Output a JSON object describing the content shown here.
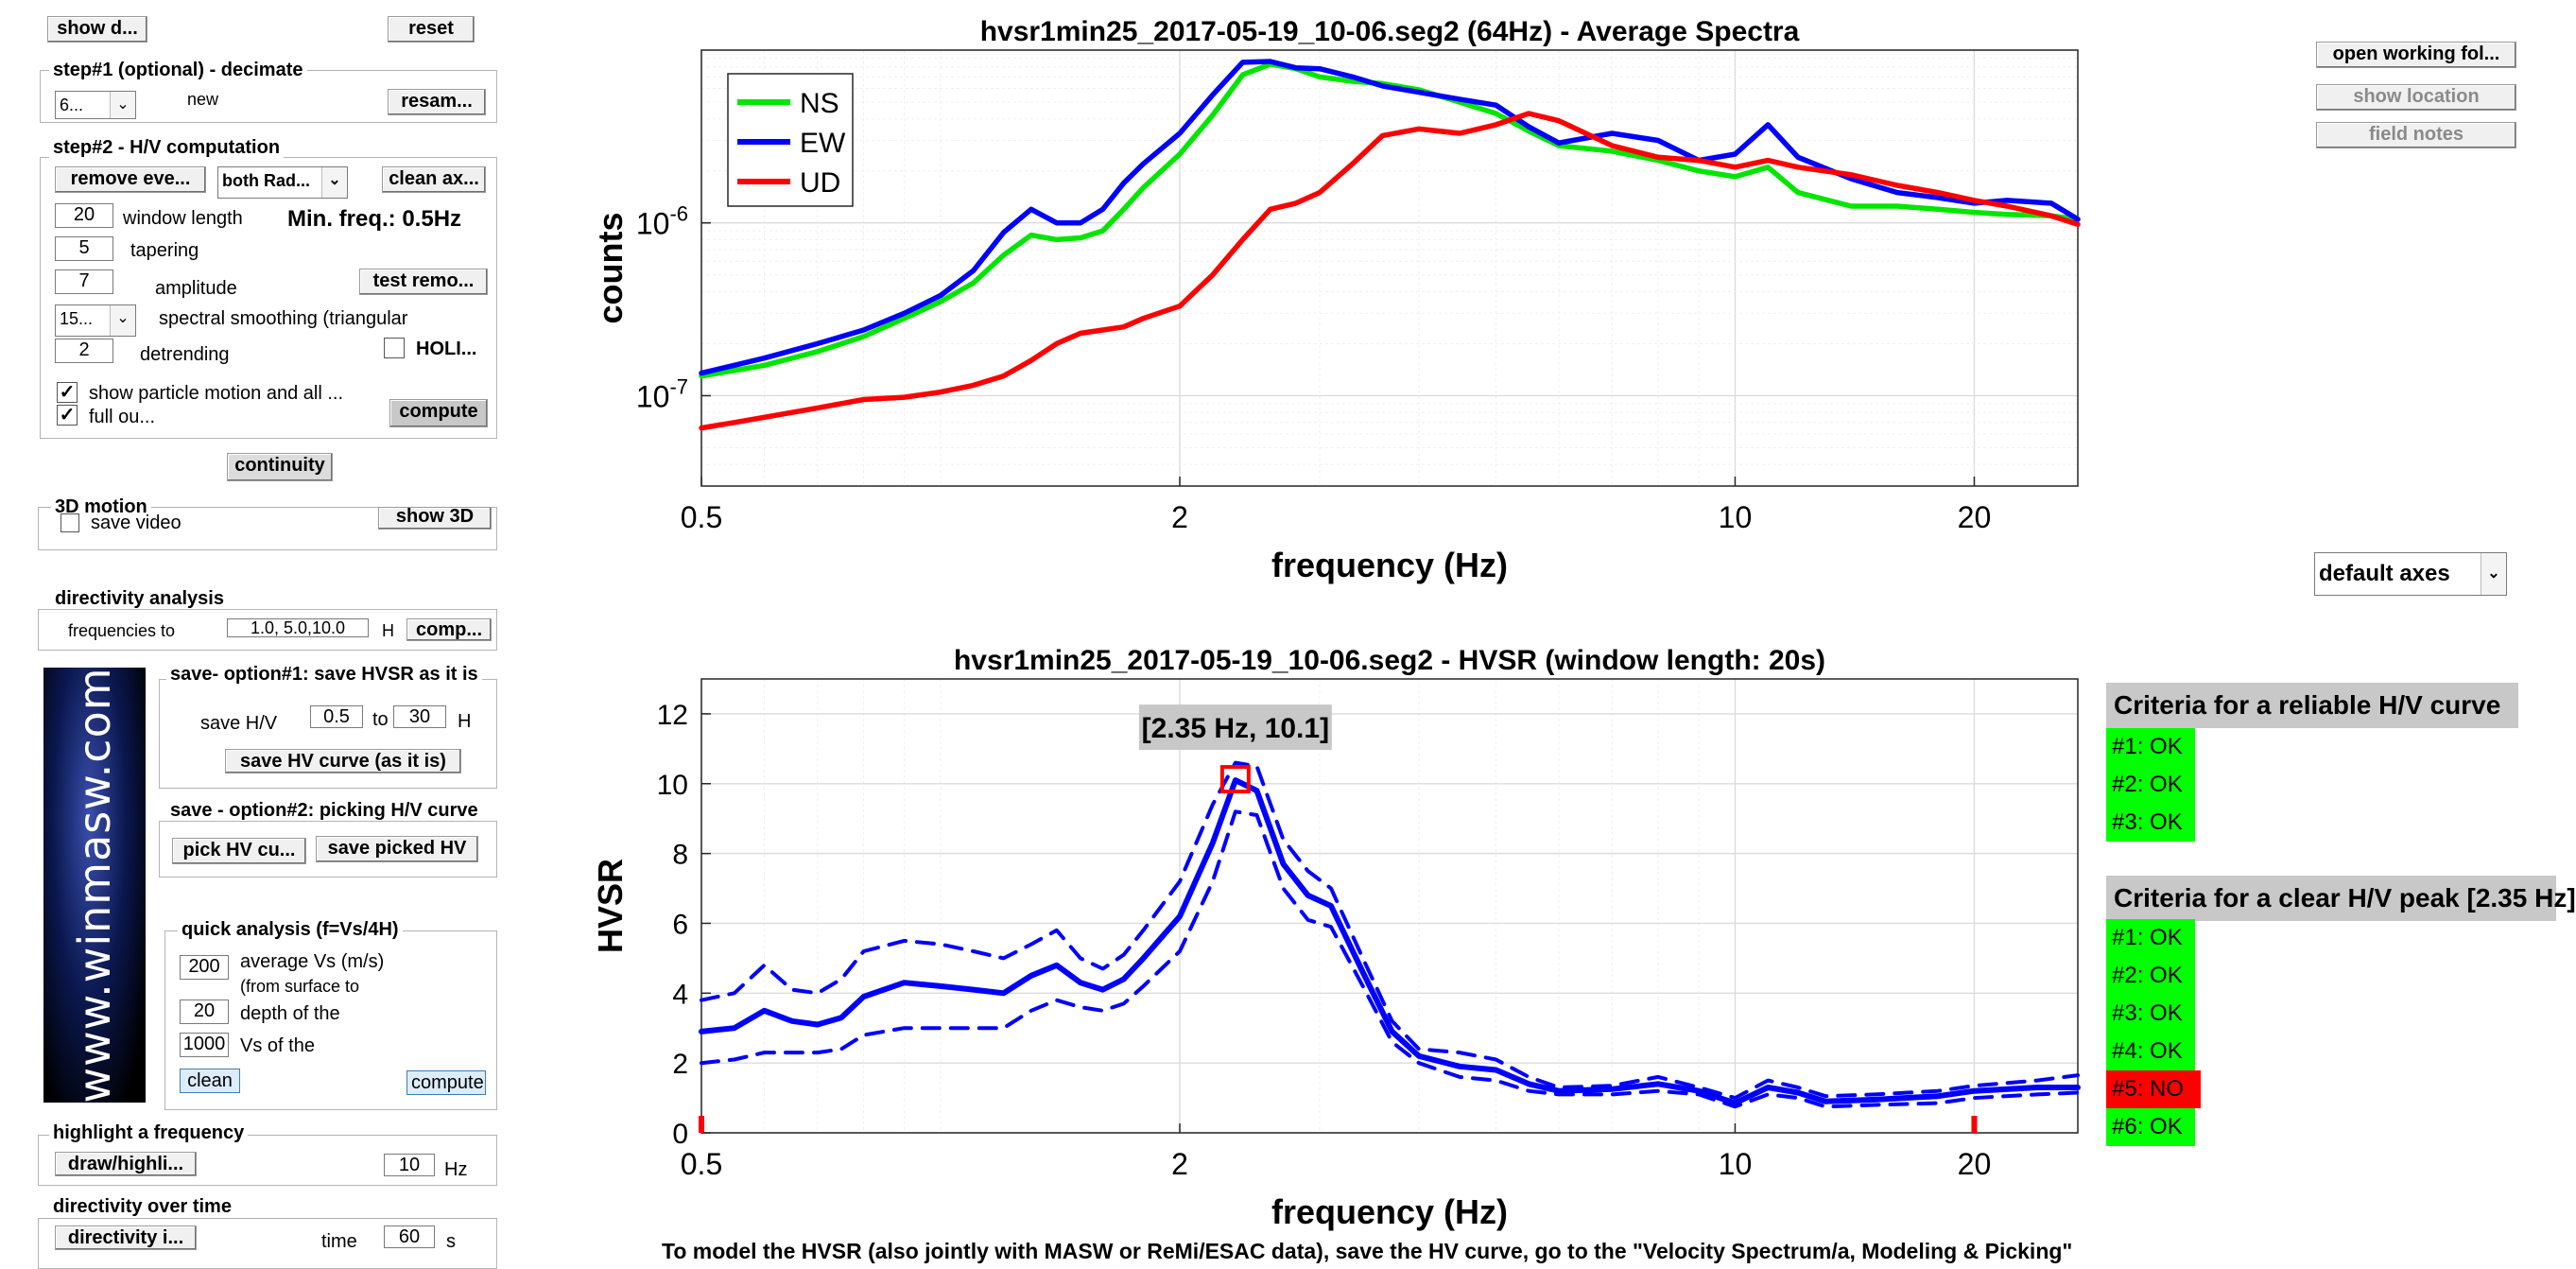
{
  "top_controls": {
    "show_d_label": "show d...",
    "reset_label": "reset"
  },
  "step1": {
    "title": "step#1 (optional) - decimate",
    "select_value": "6...",
    "new_label": "new",
    "resample_label": "resam..."
  },
  "step2": {
    "title": "step#2 - H/V computation",
    "remove_events_label": "remove eve...",
    "both_select_value": "both Rad...",
    "clean_axes_label": "clean ax...",
    "window_length_value": "20",
    "window_length_label": "window length",
    "min_freq_label": "Min. freq.: 0.5Hz",
    "tapering_value": "5",
    "tapering_label": "tapering",
    "amplitude_value": "7",
    "amplitude_label": "amplitude",
    "test_remove_label": "test remo...",
    "smoothing_select_value": "15...",
    "smoothing_label": "spectral smoothing (triangular",
    "detrending_value": "2",
    "detrending_label": "detrending",
    "holi_label": "HOLI...",
    "show_particle_label": "show particle motion and all ...",
    "full_output_label": "full ou...",
    "compute_label": "compute"
  },
  "continuity_label": "continuity",
  "motion3d": {
    "title": "3D motion",
    "save_video_label": "save video",
    "show3d_label": "show 3D"
  },
  "directivity": {
    "title": "directivity analysis",
    "freq_label": "frequencies to",
    "freq_value": "1.0, 5.0,10.0",
    "unit_label": "H",
    "compute_label": "comp..."
  },
  "logo_text": "www.winmasw.com",
  "save1": {
    "title": "save- option#1: save HVSR as it is",
    "save_hv_label": "save H/V",
    "from_value": "0.5",
    "to_label": "to",
    "to_value": "30",
    "unit_label": "H",
    "button_label": "save HV curve (as it is)"
  },
  "save2": {
    "title": "save - option#2: picking H/V curve",
    "pick_label": "pick HV cu...",
    "save_picked_label": "save picked HV"
  },
  "quick": {
    "title": "quick analysis (f=Vs/4H)",
    "vs_value": "200",
    "vs_label": "average Vs (m/s)",
    "vs_sub": "(from surface to",
    "depth_value": "20",
    "depth_label": "depth of the",
    "vsb_value": "1000",
    "vsb_label": "Vs of the",
    "clean_label": "clean",
    "compute_label": "compute"
  },
  "highlight": {
    "title": "highlight a frequency",
    "button_label": "draw/highli...",
    "value": "10",
    "unit": "Hz"
  },
  "dir_time": {
    "title": "directivity over time",
    "button_label": "directivity i...",
    "time_label": "time",
    "value": "60",
    "unit": "s"
  },
  "right_controls": {
    "open_folder_label": "open working fol...",
    "show_location_label": "show location",
    "field_notes_label": "field notes",
    "axes_select_value": "default axes"
  },
  "criteria1": {
    "title": "Criteria for a reliable H/V curve",
    "items": [
      {
        "label": "#1: OK",
        "ok": true
      },
      {
        "label": "#2: OK",
        "ok": true
      },
      {
        "label": "#3: OK",
        "ok": true
      }
    ]
  },
  "criteria2": {
    "title": "Criteria for a clear H/V peak [2.35 Hz]",
    "items": [
      {
        "label": "#1: OK",
        "ok": true
      },
      {
        "label": "#2: OK",
        "ok": true
      },
      {
        "label": "#3: OK",
        "ok": true
      },
      {
        "label": "#4: OK",
        "ok": true
      },
      {
        "label": "#5: NO",
        "ok": false
      },
      {
        "label": "#6: OK",
        "ok": true
      }
    ]
  },
  "bottom_note": "To model the HVSR (also jointly with MASW or ReMi/ESAC data), save the HV curve, go to the \"Velocity Spectrum/a, Modeling & Picking\"",
  "colors": {
    "ns": "#00e600",
    "ew": "#0000ff",
    "ud": "#ff0000",
    "hvsr": "#0000ff",
    "ok": "#00ff00",
    "no": "#ff0000"
  },
  "chart_data": [
    {
      "type": "line",
      "title": "hvsr1min25_2017-05-19_10-06.seg2 (64Hz) - Average Spectra",
      "xlabel": "frequency (Hz)",
      "ylabel": "counts",
      "x_scale": "log",
      "y_scale": "log",
      "xlim": [
        0.5,
        27
      ],
      "ylim": [
        3e-08,
        1e-05
      ],
      "x_ticks": [
        0.5,
        2,
        10,
        20
      ],
      "y_ticks": [
        {
          "value": 1e-06,
          "label": "10",
          "exp": "-6"
        },
        {
          "value": 1e-07,
          "label": "10",
          "exp": "-7"
        }
      ],
      "grid": true,
      "legend": "top-left",
      "x": [
        0.5,
        0.55,
        0.6,
        0.7,
        0.8,
        0.9,
        1.0,
        1.1,
        1.2,
        1.3,
        1.4,
        1.5,
        1.6,
        1.7,
        1.8,
        2.0,
        2.2,
        2.4,
        2.6,
        2.8,
        3.0,
        3.3,
        3.6,
        4.0,
        4.5,
        5.0,
        5.5,
        6.0,
        7.0,
        8.0,
        9.0,
        10.0,
        11.0,
        12.0,
        14.0,
        16.0,
        18.0,
        20.0,
        22.0,
        25.0,
        27.0
      ],
      "series": [
        {
          "name": "NS",
          "values": [
            1.3e-07,
            1.4e-07,
            1.5e-07,
            1.8e-07,
            2.2e-07,
            2.8e-07,
            3.5e-07,
            4.5e-07,
            6.5e-07,
            8.5e-07,
            8e-07,
            8.2e-07,
            9e-07,
            1.2e-06,
            1.6e-06,
            2.5e-06,
            4.2e-06,
            7.2e-06,
            8.3e-06,
            7.8e-06,
            7e-06,
            6.6e-06,
            6.4e-06,
            5.9e-06,
            5e-06,
            4.3e-06,
            3.4e-06,
            2.8e-06,
            2.6e-06,
            2.3e-06,
            2e-06,
            1.85e-06,
            2.1e-06,
            1.5e-06,
            1.25e-06,
            1.25e-06,
            1.2e-06,
            1.15e-06,
            1.12e-06,
            1.1e-06,
            1.05e-06
          ]
        },
        {
          "name": "EW",
          "values": [
            1.35e-07,
            1.5e-07,
            1.65e-07,
            2e-07,
            2.4e-07,
            3e-07,
            3.8e-07,
            5.3e-07,
            8.8e-07,
            1.2e-06,
            1e-06,
            1e-06,
            1.2e-06,
            1.7e-06,
            2.2e-06,
            3.3e-06,
            5.5e-06,
            8.5e-06,
            8.6e-06,
            7.9e-06,
            7.8e-06,
            7e-06,
            6.2e-06,
            5.7e-06,
            5.2e-06,
            4.8e-06,
            3.6e-06,
            2.9e-06,
            3.3e-06,
            3e-06,
            2.3e-06,
            2.5e-06,
            3.7e-06,
            2.4e-06,
            1.8e-06,
            1.5e-06,
            1.4e-06,
            1.3e-06,
            1.35e-06,
            1.3e-06,
            1.05e-06
          ]
        },
        {
          "name": "UD",
          "values": [
            6.5e-08,
            7e-08,
            7.5e-08,
            8.5e-08,
            9.5e-08,
            9.8e-08,
            1.05e-07,
            1.15e-07,
            1.3e-07,
            1.6e-07,
            2e-07,
            2.3e-07,
            2.4e-07,
            2.5e-07,
            2.8e-07,
            3.3e-07,
            5e-07,
            8e-07,
            1.2e-06,
            1.3e-06,
            1.5e-06,
            2.2e-06,
            3.2e-06,
            3.5e-06,
            3.3e-06,
            3.7e-06,
            4.3e-06,
            3.9e-06,
            2.8e-06,
            2.4e-06,
            2.3e-06,
            2.1e-06,
            2.3e-06,
            2.1e-06,
            1.9e-06,
            1.65e-06,
            1.5e-06,
            1.35e-06,
            1.25e-06,
            1.1e-06,
            9.8e-07
          ]
        }
      ]
    },
    {
      "type": "line",
      "title": "hvsr1min25_2017-05-19_10-06.seg2 - HVSR (window length: 20s)",
      "xlabel": "frequency (Hz)",
      "ylabel": "HVSR",
      "x_scale": "log",
      "xlim": [
        0.5,
        27
      ],
      "ylim": [
        0,
        13
      ],
      "x_ticks": [
        0.5,
        2,
        10,
        20
      ],
      "y_ticks": [
        0,
        2,
        4,
        6,
        8,
        10,
        12
      ],
      "grid": true,
      "peak_annotation": {
        "label": "[2.35 Hz, 10.1]",
        "x": 2.35,
        "y": 10.1
      },
      "range_markers": [
        0.5,
        20
      ],
      "x": [
        0.5,
        0.55,
        0.6,
        0.65,
        0.7,
        0.75,
        0.8,
        0.9,
        1.0,
        1.1,
        1.2,
        1.3,
        1.4,
        1.5,
        1.6,
        1.7,
        1.8,
        2.0,
        2.2,
        2.35,
        2.5,
        2.7,
        2.9,
        3.1,
        3.4,
        3.7,
        4.0,
        4.5,
        5.0,
        5.5,
        6.0,
        7.0,
        8.0,
        9.0,
        10.0,
        11.0,
        12.0,
        13.0,
        15.0,
        18.0,
        20.0,
        24.0,
        27.0
      ],
      "series": [
        {
          "name": "H/V",
          "values": [
            2.9,
            3.0,
            3.5,
            3.2,
            3.1,
            3.3,
            3.9,
            4.3,
            4.2,
            4.1,
            4.0,
            4.5,
            4.8,
            4.3,
            4.1,
            4.4,
            5.0,
            6.2,
            8.3,
            10.1,
            9.8,
            7.7,
            6.8,
            6.5,
            4.6,
            2.9,
            2.2,
            1.9,
            1.8,
            1.4,
            1.2,
            1.25,
            1.4,
            1.2,
            0.85,
            1.3,
            1.15,
            0.9,
            0.95,
            1.05,
            1.2,
            1.3,
            1.3
          ]
        },
        {
          "name": "H/V + std",
          "values": [
            3.8,
            4.0,
            4.8,
            4.1,
            4.0,
            4.4,
            5.2,
            5.5,
            5.4,
            5.2,
            5.0,
            5.4,
            5.8,
            5.0,
            4.7,
            5.1,
            5.8,
            7.2,
            9.4,
            10.6,
            10.5,
            8.4,
            7.5,
            7.0,
            5.0,
            3.2,
            2.4,
            2.3,
            2.1,
            1.6,
            1.3,
            1.35,
            1.6,
            1.3,
            1.0,
            1.5,
            1.3,
            1.05,
            1.1,
            1.2,
            1.35,
            1.5,
            1.65
          ]
        },
        {
          "name": "H/V - std",
          "values": [
            2.0,
            2.1,
            2.3,
            2.3,
            2.3,
            2.4,
            2.8,
            3.0,
            3.0,
            3.0,
            3.0,
            3.5,
            3.8,
            3.6,
            3.5,
            3.7,
            4.2,
            5.2,
            7.2,
            9.2,
            9.1,
            7.0,
            6.1,
            5.9,
            4.2,
            2.6,
            2.0,
            1.6,
            1.5,
            1.2,
            1.1,
            1.1,
            1.2,
            1.1,
            0.75,
            1.1,
            1.0,
            0.75,
            0.8,
            0.85,
            1.0,
            1.1,
            1.15
          ]
        }
      ]
    }
  ]
}
